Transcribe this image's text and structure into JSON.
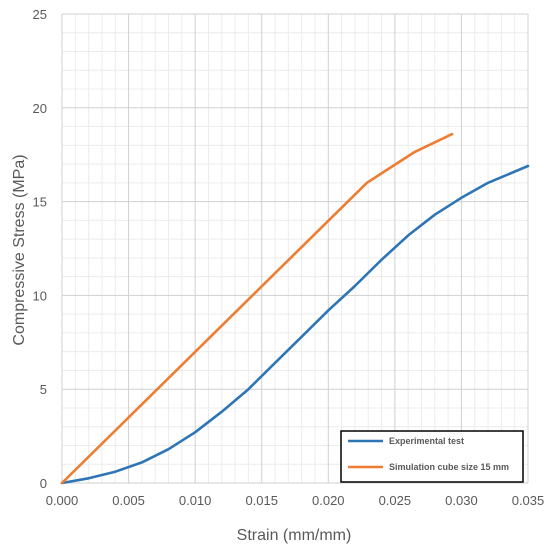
{
  "chart_data": {
    "type": "line",
    "xlabel": "Strain (mm/mm)",
    "ylabel": "Compressive Stress (MPa)",
    "xlim": [
      0,
      0.035
    ],
    "ylim": [
      0,
      25
    ],
    "x_ticks": [
      "0.000",
      "0.005",
      "0.010",
      "0.015",
      "0.020",
      "0.025",
      "0.030",
      "0.035"
    ],
    "y_ticks": [
      "0",
      "5",
      "10",
      "15",
      "20",
      "25"
    ],
    "grid": true,
    "minor_grid": true,
    "legend_position": "bottom-right",
    "series": [
      {
        "name": "Experimental test",
        "color": "#2e75b6",
        "points": [
          [
            0.0,
            0.0
          ],
          [
            0.002,
            0.25
          ],
          [
            0.004,
            0.6
          ],
          [
            0.006,
            1.1
          ],
          [
            0.008,
            1.8
          ],
          [
            0.01,
            2.7
          ],
          [
            0.012,
            3.8
          ],
          [
            0.014,
            5.0
          ],
          [
            0.016,
            6.4
          ],
          [
            0.018,
            7.8
          ],
          [
            0.02,
            9.2
          ],
          [
            0.022,
            10.5
          ],
          [
            0.024,
            11.9
          ],
          [
            0.026,
            13.2
          ],
          [
            0.028,
            14.3
          ],
          [
            0.03,
            15.2
          ],
          [
            0.032,
            16.0
          ],
          [
            0.035,
            16.9
          ]
        ]
      },
      {
        "name": "Simulation cube size 15 mm",
        "color": "#ed7d31",
        "points": [
          [
            0.0,
            0.0
          ],
          [
            0.0229,
            16.0
          ],
          [
            0.0265,
            17.65
          ],
          [
            0.0293,
            18.6
          ]
        ]
      }
    ]
  }
}
